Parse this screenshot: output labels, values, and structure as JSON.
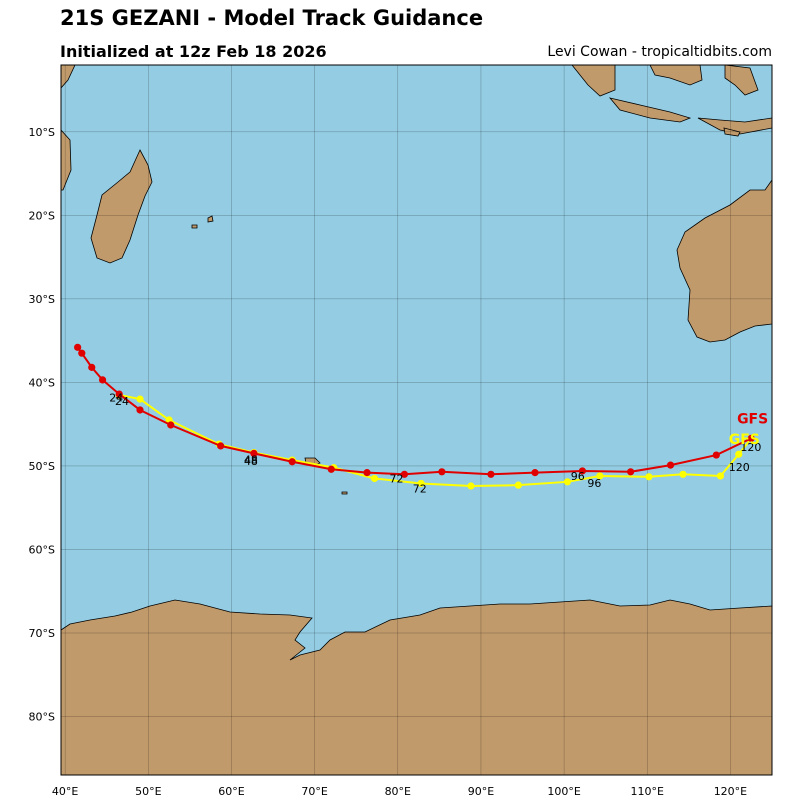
{
  "header": {
    "title": "21S GEZANI - Model Track Guidance",
    "subtitle": "Initialized at 12z Feb 18 2026",
    "credit": "Levi Cowan - tropicaltidbits.com"
  },
  "colors": {
    "ocean": "#94cde3",
    "land": "#c19a6b",
    "gfs": "#e00000",
    "gfs_alt": "#ffff00"
  },
  "map": {
    "lon_ticks": [
      "40°E",
      "50°E",
      "60°E",
      "70°E",
      "80°E",
      "90°E",
      "100°E",
      "110°E",
      "120°E"
    ],
    "lat_ticks": [
      "10°S",
      "20°S",
      "30°S",
      "40°S",
      "50°S",
      "60°S",
      "70°S",
      "80°S"
    ],
    "lon_range": [
      39.5,
      125
    ],
    "lat_range": [
      -2,
      -87
    ]
  },
  "tracks": [
    {
      "name": "GFS",
      "color": "#e00000",
      "points": [
        [
          41.5,
          -35.8
        ],
        [
          42.0,
          -36.5
        ],
        [
          43.2,
          -38.2
        ],
        [
          44.5,
          -39.7
        ],
        [
          46.5,
          -41.4
        ],
        [
          49.0,
          -43.3
        ],
        [
          52.7,
          -45.1
        ],
        [
          58.7,
          -47.6
        ],
        [
          62.7,
          -48.5
        ],
        [
          67.3,
          -49.5
        ],
        [
          72.0,
          -50.4
        ],
        [
          76.3,
          -50.8
        ],
        [
          80.8,
          -51.0
        ],
        [
          85.3,
          -50.7
        ],
        [
          91.2,
          -51.0
        ],
        [
          96.5,
          -50.8
        ],
        [
          102.2,
          -50.6
        ],
        [
          108.0,
          -50.7
        ],
        [
          112.8,
          -49.9
        ],
        [
          118.3,
          -48.7
        ],
        [
          122.5,
          -46.7
        ]
      ],
      "labels": [
        {
          "text": "24",
          "lon": 45.3,
          "lat": -42.3
        },
        {
          "text": "48",
          "lon": 61.5,
          "lat": -49.7
        },
        {
          "text": "72",
          "lon": 79.0,
          "lat": -52.0
        },
        {
          "text": "96",
          "lon": 100.8,
          "lat": -51.7
        },
        {
          "text": "120",
          "lon": 121.2,
          "lat": -48.2
        }
      ]
    },
    {
      "name": "GFS",
      "color": "#ffff00",
      "points": [
        [
          46.5,
          -41.5
        ],
        [
          49.0,
          -42.0
        ],
        [
          52.5,
          -44.5
        ],
        [
          58.5,
          -47.4
        ],
        [
          62.7,
          -48.4
        ],
        [
          67.3,
          -49.3
        ],
        [
          72.3,
          -50.2
        ],
        [
          77.2,
          -51.5
        ],
        [
          82.8,
          -52.1
        ],
        [
          88.8,
          -52.4
        ],
        [
          94.5,
          -52.3
        ],
        [
          100.4,
          -51.9
        ],
        [
          104.3,
          -51.2
        ],
        [
          110.2,
          -51.3
        ],
        [
          114.3,
          -51.0
        ],
        [
          118.8,
          -51.2
        ],
        [
          121.0,
          -48.6
        ],
        [
          122.5,
          -46.7
        ]
      ],
      "labels": [
        {
          "text": "24",
          "lon": 46.0,
          "lat": -42.7
        },
        {
          "text": "48",
          "lon": 61.5,
          "lat": -49.9
        },
        {
          "text": "72",
          "lon": 81.8,
          "lat": -53.2
        },
        {
          "text": "96",
          "lon": 102.8,
          "lat": -52.5
        },
        {
          "text": "120",
          "lon": 119.8,
          "lat": -50.6
        }
      ]
    }
  ],
  "legend": [
    {
      "text": "GFS",
      "color": "#e00000",
      "lon": 120.8,
      "lat": -44.9
    },
    {
      "text": "GFS",
      "color": "#ffff00",
      "lon": 119.8,
      "lat": -47.4
    }
  ]
}
